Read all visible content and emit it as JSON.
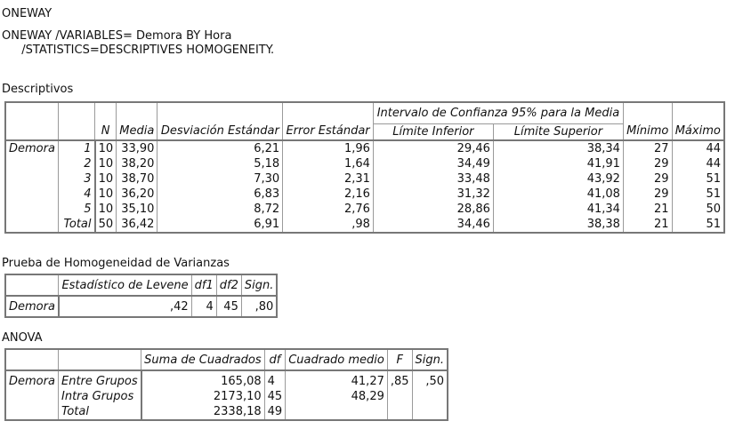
{
  "title": "ONEWAY",
  "syntax": {
    "line1": "ONEWAY /VARIABLES= Demora BY Hora",
    "line2": "  /STATISTICS=DESCRIPTIVES HOMOGENEITY."
  },
  "descriptivos": {
    "title": "Descriptivos",
    "ci_header": "Intervalo de Confianza 95% para la Media",
    "headers": {
      "n": "N",
      "media": "Media",
      "desv": "Desviación Estándar",
      "error": "Error Estándar",
      "lim_inf": "Límite Inferior",
      "lim_sup": "Límite Superior",
      "min": "Mínimo",
      "max": "Máximo"
    },
    "variable": "Demora",
    "rows": [
      {
        "group": "1",
        "n": "10",
        "media": "33,90",
        "desv": "6,21",
        "error": "1,96",
        "inf": "29,46",
        "sup": "38,34",
        "min": "27",
        "max": "44"
      },
      {
        "group": "2",
        "n": "10",
        "media": "38,20",
        "desv": "5,18",
        "error": "1,64",
        "inf": "34,49",
        "sup": "41,91",
        "min": "29",
        "max": "44"
      },
      {
        "group": "3",
        "n": "10",
        "media": "38,70",
        "desv": "7,30",
        "error": "2,31",
        "inf": "33,48",
        "sup": "43,92",
        "min": "29",
        "max": "51"
      },
      {
        "group": "4",
        "n": "10",
        "media": "36,20",
        "desv": "6,83",
        "error": "2,16",
        "inf": "31,32",
        "sup": "41,08",
        "min": "29",
        "max": "51"
      },
      {
        "group": "5",
        "n": "10",
        "media": "35,10",
        "desv": "8,72",
        "error": "2,76",
        "inf": "28,86",
        "sup": "41,34",
        "min": "21",
        "max": "50"
      },
      {
        "group": "Total",
        "n": "50",
        "media": "36,42",
        "desv": "6,91",
        "error": ",98",
        "inf": "34,46",
        "sup": "38,38",
        "min": "21",
        "max": "51"
      }
    ]
  },
  "homogeneidad": {
    "title": "Prueba de Homogeneidad de Varianzas",
    "headers": {
      "levene": "Estadístico de Levene",
      "df1": "df1",
      "df2": "df2",
      "sign": "Sign."
    },
    "variable": "Demora",
    "levene": ",42",
    "df1": "4",
    "df2": "45",
    "sign": ",80"
  },
  "anova": {
    "title": "ANOVA",
    "headers": {
      "suma": "Suma de Cuadrados",
      "df": "df",
      "cuadrado": "Cuadrado medio",
      "f": "F",
      "sign": "Sign."
    },
    "variable": "Demora",
    "rows": [
      {
        "label": "Entre Grupos",
        "suma": "165,08",
        "df": "4",
        "cuadrado": "41,27",
        "f": ",85",
        "sign": ",50"
      },
      {
        "label": "Intra Grupos",
        "suma": "2173,10",
        "df": "45",
        "cuadrado": "48,29",
        "f": "",
        "sign": ""
      },
      {
        "label": "Total",
        "suma": "2338,18",
        "df": "49",
        "cuadrado": "",
        "f": "",
        "sign": ""
      }
    ]
  }
}
